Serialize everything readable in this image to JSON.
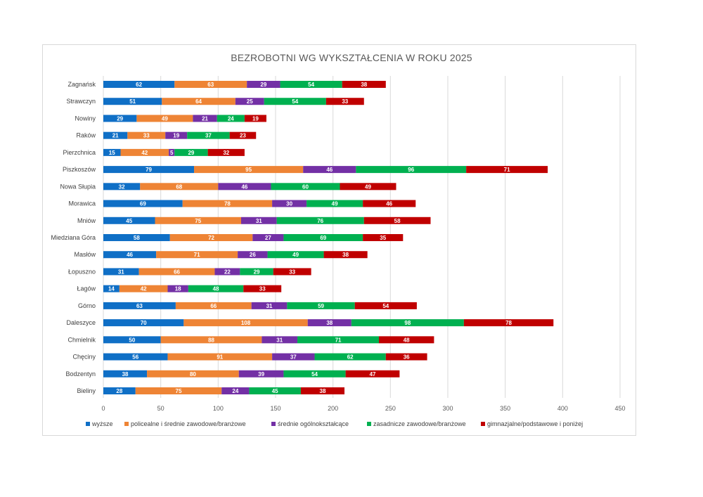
{
  "chart_data": {
    "type": "bar",
    "orientation": "horizontal",
    "stacked": true,
    "title": "BEZROBOTNI WG WYKSZTAŁCENIA W ROKU 2025",
    "xlabel": "",
    "ylabel": "",
    "xlim": [
      0,
      450
    ],
    "xticks": [
      0,
      50,
      100,
      150,
      200,
      250,
      300,
      350,
      400,
      450
    ],
    "grid": true,
    "legend_position": "bottom",
    "categories": [
      "Zagnańsk",
      "Strawczyn",
      "Nowiny",
      "Raków",
      "Pierzchnica",
      "Piszkoszów",
      "Nowa Słupia",
      "Morawica",
      "Mniów",
      "Miedziana Góra",
      "Masłów",
      "Łopuszno",
      "Łagów",
      "Górno",
      "Daleszyce",
      "Chmielnik",
      "Chęciny",
      "Bodzentyn",
      "Bieliny"
    ],
    "series": [
      {
        "name": "wyższe",
        "color": "#0F6FC6",
        "values": [
          62,
          51,
          29,
          21,
          15,
          79,
          32,
          69,
          45,
          58,
          46,
          31,
          14,
          63,
          70,
          50,
          56,
          38,
          28
        ]
      },
      {
        "name": "policealne i średnie zawodowe/branżowe",
        "color": "#EE8435",
        "values": [
          63,
          64,
          49,
          33,
          42,
          95,
          68,
          78,
          75,
          72,
          71,
          66,
          42,
          66,
          108,
          88,
          91,
          80,
          75
        ]
      },
      {
        "name": "średnie ogólnokształcące",
        "color": "#7330A5",
        "values": [
          29,
          25,
          21,
          19,
          5,
          46,
          46,
          30,
          31,
          27,
          26,
          22,
          18,
          31,
          38,
          31,
          37,
          39,
          24
        ]
      },
      {
        "name": "zasadnicze zawodowe/branżowe",
        "color": "#00B050",
        "values": [
          54,
          54,
          24,
          37,
          29,
          96,
          60,
          49,
          76,
          69,
          49,
          29,
          48,
          59,
          98,
          71,
          62,
          54,
          45
        ]
      },
      {
        "name": "gimnazjalne/podstawowe i poniżej",
        "color": "#C00000",
        "values": [
          38,
          33,
          19,
          23,
          32,
          71,
          49,
          46,
          58,
          35,
          38,
          33,
          33,
          54,
          78,
          48,
          36,
          47,
          38
        ]
      }
    ]
  }
}
